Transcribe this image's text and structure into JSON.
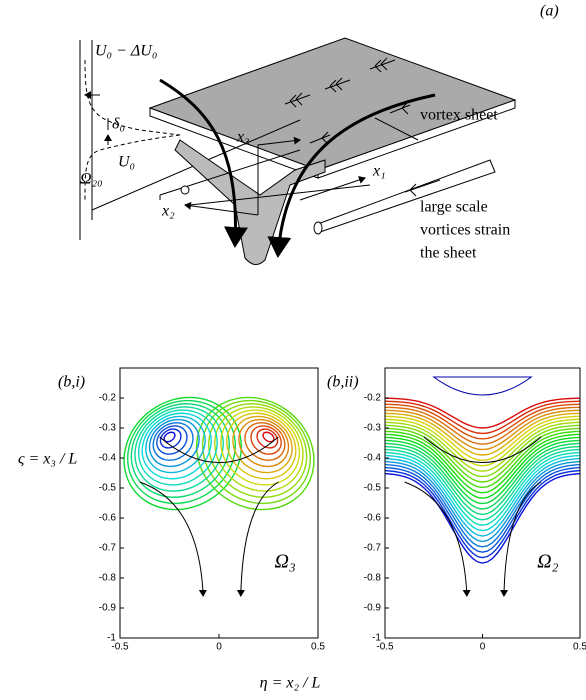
{
  "panel_a": {
    "label": "(a)",
    "u_minus": "U₀ − ΔU₀",
    "delta": "δ₀",
    "omega": "Ω₂₀",
    "u0": "U₀",
    "x3": "x₃",
    "x1": "x₁",
    "x2": "x₂",
    "sheet_label": "vortex sheet",
    "caption_lines": [
      "large scale",
      "vortices strain",
      "the sheet"
    ]
  },
  "panels": [
    {
      "label": "(b,i)",
      "field": "Ω₃",
      "xlim": [
        -0.5,
        0.5
      ],
      "ylim": [
        -1,
        -0.1
      ],
      "xticks": [
        -0.5,
        0,
        0.5
      ],
      "yticks": [
        -0.2,
        -0.3,
        -0.4,
        -0.5,
        -0.6,
        -0.7,
        -0.8,
        -0.9,
        -1
      ]
    },
    {
      "label": "(b,ii)",
      "field": "Ω₂",
      "xlim": [
        -0.5,
        0.5
      ],
      "ylim": [
        -1,
        -0.1
      ],
      "xticks": [
        -0.5,
        0,
        0.5
      ],
      "yticks": [
        -0.2,
        -0.3,
        -0.4,
        -0.5,
        -0.6,
        -0.7,
        -0.8,
        -0.9,
        -1
      ]
    }
  ],
  "y_axis_label": "ς = x₃ / L",
  "x_axis_label": "η = x₂ / L"
}
